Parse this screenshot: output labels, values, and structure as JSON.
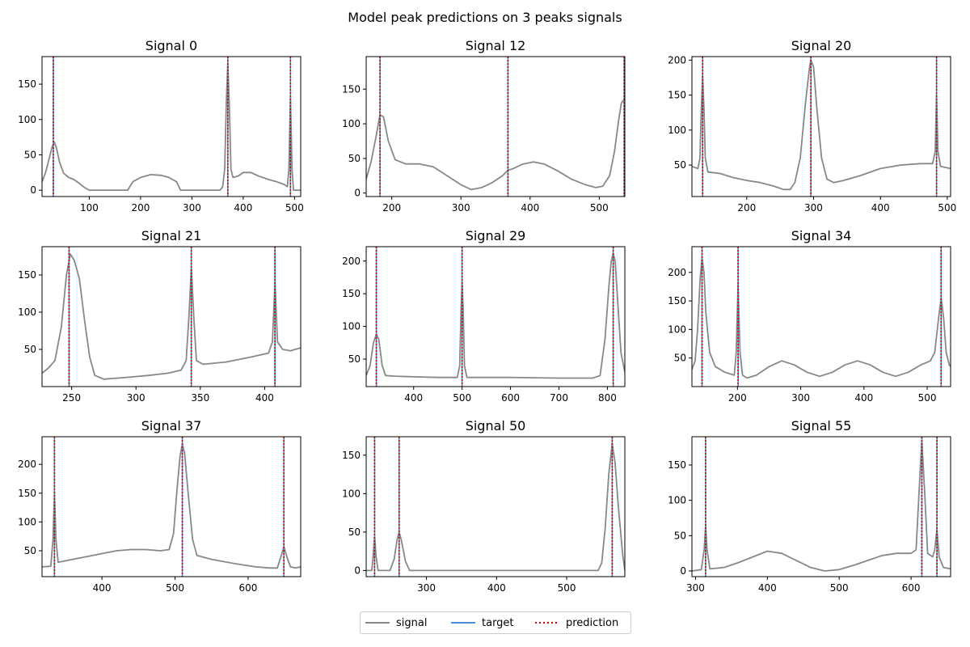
{
  "figure": {
    "suptitle": "Model peak predictions on 3 peaks signals",
    "colors": {
      "signal": "#888888",
      "target": "#4a90d9",
      "prediction": "#cc0000"
    }
  },
  "legend": {
    "signal": "signal",
    "target": "target",
    "prediction": "prediction"
  },
  "chart_data": [
    {
      "type": "line",
      "title": "Signal 0",
      "xlim": [
        8,
        512
      ],
      "ylim": [
        -9,
        189
      ],
      "xticks": [
        100,
        200,
        300,
        400,
        500
      ],
      "yticks": [
        0,
        50,
        100,
        150
      ],
      "targets": [
        30,
        370,
        492
      ],
      "predictions": [
        30,
        370,
        492
      ],
      "signal": [
        [
          8,
          12
        ],
        [
          15,
          25
        ],
        [
          22,
          45
        ],
        [
          28,
          62
        ],
        [
          32,
          68
        ],
        [
          36,
          60
        ],
        [
          42,
          40
        ],
        [
          50,
          24
        ],
        [
          60,
          18
        ],
        [
          70,
          15
        ],
        [
          80,
          10
        ],
        [
          90,
          4
        ],
        [
          100,
          0
        ],
        [
          175,
          0
        ],
        [
          185,
          12
        ],
        [
          200,
          18
        ],
        [
          220,
          22
        ],
        [
          240,
          21
        ],
        [
          255,
          18
        ],
        [
          270,
          12
        ],
        [
          278,
          0
        ],
        [
          355,
          0
        ],
        [
          360,
          5
        ],
        [
          364,
          30
        ],
        [
          367,
          120
        ],
        [
          370,
          180
        ],
        [
          373,
          120
        ],
        [
          376,
          30
        ],
        [
          380,
          18
        ],
        [
          390,
          20
        ],
        [
          400,
          25
        ],
        [
          415,
          25
        ],
        [
          430,
          20
        ],
        [
          450,
          15
        ],
        [
          465,
          12
        ],
        [
          480,
          8
        ],
        [
          486,
          5
        ],
        [
          489,
          30
        ],
        [
          492,
          132
        ],
        [
          495,
          30
        ],
        [
          498,
          0
        ],
        [
          512,
          0
        ]
      ]
    },
    {
      "type": "line",
      "title": "Signal 12",
      "xlim": [
        163,
        537
      ],
      "ylim": [
        -5,
        197
      ],
      "xticks": [
        200,
        300,
        400,
        500
      ],
      "yticks": [
        0,
        50,
        100,
        150
      ],
      "targets": [
        183,
        368,
        536
      ],
      "predictions": [
        183,
        368,
        536
      ],
      "signal": [
        [
          163,
          20
        ],
        [
          170,
          45
        ],
        [
          177,
          80
        ],
        [
          183,
          113
        ],
        [
          188,
          110
        ],
        [
          195,
          75
        ],
        [
          205,
          48
        ],
        [
          220,
          42
        ],
        [
          240,
          42
        ],
        [
          260,
          38
        ],
        [
          280,
          25
        ],
        [
          300,
          12
        ],
        [
          315,
          5
        ],
        [
          330,
          8
        ],
        [
          345,
          15
        ],
        [
          360,
          25
        ],
        [
          368,
          33
        ],
        [
          375,
          35
        ],
        [
          390,
          42
        ],
        [
          405,
          45
        ],
        [
          420,
          42
        ],
        [
          440,
          32
        ],
        [
          460,
          20
        ],
        [
          480,
          12
        ],
        [
          495,
          8
        ],
        [
          505,
          10
        ],
        [
          515,
          25
        ],
        [
          522,
          60
        ],
        [
          528,
          105
        ],
        [
          532,
          130
        ],
        [
          536,
          135
        ],
        [
          537,
          134
        ]
      ]
    },
    {
      "type": "line",
      "title": "Signal 20",
      "xlim": [
        118,
        505
      ],
      "ylim": [
        5,
        205
      ],
      "xticks": [
        200,
        300,
        400,
        500
      ],
      "yticks": [
        50,
        100,
        150,
        200
      ],
      "targets": [
        134,
        296,
        484
      ],
      "predictions": [
        134,
        296,
        484
      ],
      "signal": [
        [
          118,
          48
        ],
        [
          127,
          45
        ],
        [
          130,
          60
        ],
        [
          132,
          130
        ],
        [
          134,
          178
        ],
        [
          136,
          130
        ],
        [
          138,
          60
        ],
        [
          142,
          40
        ],
        [
          160,
          38
        ],
        [
          180,
          32
        ],
        [
          200,
          28
        ],
        [
          220,
          25
        ],
        [
          240,
          20
        ],
        [
          255,
          15
        ],
        [
          265,
          15
        ],
        [
          272,
          25
        ],
        [
          280,
          60
        ],
        [
          288,
          140
        ],
        [
          294,
          190
        ],
        [
          296,
          200
        ],
        [
          300,
          190
        ],
        [
          305,
          130
        ],
        [
          312,
          60
        ],
        [
          320,
          30
        ],
        [
          330,
          25
        ],
        [
          345,
          28
        ],
        [
          370,
          35
        ],
        [
          400,
          45
        ],
        [
          430,
          50
        ],
        [
          460,
          52
        ],
        [
          478,
          52
        ],
        [
          482,
          70
        ],
        [
          484,
          150
        ],
        [
          486,
          70
        ],
        [
          490,
          48
        ],
        [
          505,
          45
        ]
      ]
    },
    {
      "type": "line",
      "title": "Signal 21",
      "xlim": [
        227,
        428
      ],
      "ylim": [
        0,
        188
      ],
      "xticks": [
        250,
        300,
        350,
        400
      ],
      "yticks": [
        50,
        100,
        150
      ],
      "targets": [
        248,
        343,
        408
      ],
      "predictions": [
        248,
        343,
        408
      ],
      "signal": [
        [
          227,
          18
        ],
        [
          232,
          25
        ],
        [
          237,
          35
        ],
        [
          242,
          80
        ],
        [
          246,
          150
        ],
        [
          249,
          178
        ],
        [
          252,
          170
        ],
        [
          256,
          145
        ],
        [
          260,
          90
        ],
        [
          264,
          40
        ],
        [
          268,
          15
        ],
        [
          275,
          10
        ],
        [
          290,
          12
        ],
        [
          310,
          15
        ],
        [
          325,
          18
        ],
        [
          335,
          22
        ],
        [
          339,
          35
        ],
        [
          341,
          90
        ],
        [
          343,
          160
        ],
        [
          345,
          90
        ],
        [
          347,
          35
        ],
        [
          352,
          30
        ],
        [
          370,
          33
        ],
        [
          390,
          40
        ],
        [
          403,
          45
        ],
        [
          406,
          60
        ],
        [
          408,
          140
        ],
        [
          410,
          60
        ],
        [
          414,
          50
        ],
        [
          420,
          48
        ],
        [
          428,
          52
        ]
      ]
    },
    {
      "type": "line",
      "title": "Signal 29",
      "xlim": [
        302,
        836
      ],
      "ylim": [
        8,
        222
      ],
      "xticks": [
        400,
        500,
        600,
        700,
        800
      ],
      "yticks": [
        50,
        100,
        150,
        200
      ],
      "targets": [
        323,
        500,
        812
      ],
      "predictions": [
        323,
        500,
        812
      ],
      "signal": [
        [
          302,
          25
        ],
        [
          310,
          40
        ],
        [
          317,
          75
        ],
        [
          323,
          88
        ],
        [
          328,
          80
        ],
        [
          335,
          40
        ],
        [
          342,
          25
        ],
        [
          360,
          24
        ],
        [
          400,
          23
        ],
        [
          450,
          22
        ],
        [
          490,
          22
        ],
        [
          495,
          40
        ],
        [
          498,
          130
        ],
        [
          500,
          168
        ],
        [
          502,
          130
        ],
        [
          505,
          40
        ],
        [
          510,
          22
        ],
        [
          600,
          22
        ],
        [
          700,
          21
        ],
        [
          770,
          21
        ],
        [
          785,
          25
        ],
        [
          795,
          80
        ],
        [
          803,
          160
        ],
        [
          808,
          200
        ],
        [
          812,
          212
        ],
        [
          816,
          200
        ],
        [
          822,
          130
        ],
        [
          828,
          60
        ],
        [
          836,
          30
        ]
      ]
    },
    {
      "type": "line",
      "title": "Signal 34",
      "xlim": [
        128,
        537
      ],
      "ylim": [
        0,
        245
      ],
      "xticks": [
        200,
        300,
        400,
        500
      ],
      "yticks": [
        50,
        100,
        150,
        200
      ],
      "targets": [
        144,
        201,
        522
      ],
      "predictions": [
        144,
        201,
        522
      ],
      "signal": [
        [
          128,
          30
        ],
        [
          133,
          45
        ],
        [
          137,
          100
        ],
        [
          141,
          190
        ],
        [
          144,
          225
        ],
        [
          147,
          200
        ],
        [
          150,
          130
        ],
        [
          156,
          60
        ],
        [
          165,
          35
        ],
        [
          180,
          25
        ],
        [
          195,
          20
        ],
        [
          198,
          60
        ],
        [
          201,
          180
        ],
        [
          204,
          60
        ],
        [
          208,
          20
        ],
        [
          215,
          15
        ],
        [
          230,
          20
        ],
        [
          250,
          35
        ],
        [
          270,
          45
        ],
        [
          290,
          38
        ],
        [
          310,
          25
        ],
        [
          330,
          18
        ],
        [
          350,
          25
        ],
        [
          370,
          38
        ],
        [
          390,
          45
        ],
        [
          410,
          38
        ],
        [
          430,
          25
        ],
        [
          450,
          18
        ],
        [
          470,
          25
        ],
        [
          490,
          38
        ],
        [
          505,
          45
        ],
        [
          512,
          60
        ],
        [
          518,
          120
        ],
        [
          522,
          155
        ],
        [
          526,
          120
        ],
        [
          530,
          60
        ],
        [
          535,
          38
        ],
        [
          537,
          35
        ]
      ]
    },
    {
      "type": "line",
      "title": "Signal 37",
      "xlim": [
        318,
        672
      ],
      "ylim": [
        5,
        248
      ],
      "xticks": [
        400,
        500,
        600
      ],
      "yticks": [
        50,
        100,
        150,
        200
      ],
      "targets": [
        335,
        510,
        649
      ],
      "predictions": [
        335,
        510,
        649
      ],
      "signal": [
        [
          318,
          22
        ],
        [
          330,
          23
        ],
        [
          333,
          70
        ],
        [
          335,
          150
        ],
        [
          337,
          70
        ],
        [
          340,
          30
        ],
        [
          360,
          35
        ],
        [
          380,
          40
        ],
        [
          400,
          45
        ],
        [
          420,
          50
        ],
        [
          440,
          52
        ],
        [
          460,
          52
        ],
        [
          480,
          50
        ],
        [
          492,
          52
        ],
        [
          498,
          80
        ],
        [
          503,
          160
        ],
        [
          507,
          215
        ],
        [
          510,
          235
        ],
        [
          513,
          220
        ],
        [
          518,
          150
        ],
        [
          524,
          70
        ],
        [
          530,
          42
        ],
        [
          550,
          35
        ],
        [
          580,
          28
        ],
        [
          610,
          22
        ],
        [
          630,
          20
        ],
        [
          640,
          20
        ],
        [
          645,
          40
        ],
        [
          649,
          57
        ],
        [
          653,
          40
        ],
        [
          658,
          22
        ],
        [
          665,
          20
        ],
        [
          672,
          22
        ]
      ]
    },
    {
      "type": "line",
      "title": "Signal 50",
      "xlim": [
        214,
        583
      ],
      "ylim": [
        -8,
        174
      ],
      "xticks": [
        300,
        400,
        500
      ],
      "yticks": [
        0,
        50,
        100,
        150
      ],
      "targets": [
        226,
        261,
        565
      ],
      "predictions": [
        226,
        261,
        565
      ],
      "signal": [
        [
          214,
          0
        ],
        [
          222,
          0
        ],
        [
          224,
          20
        ],
        [
          226,
          45
        ],
        [
          228,
          20
        ],
        [
          231,
          0
        ],
        [
          248,
          0
        ],
        [
          254,
          15
        ],
        [
          258,
          40
        ],
        [
          261,
          50
        ],
        [
          264,
          40
        ],
        [
          270,
          12
        ],
        [
          276,
          0
        ],
        [
          545,
          0
        ],
        [
          550,
          10
        ],
        [
          555,
          55
        ],
        [
          560,
          125
        ],
        [
          565,
          165
        ],
        [
          569,
          140
        ],
        [
          574,
          80
        ],
        [
          580,
          20
        ],
        [
          583,
          0
        ]
      ]
    },
    {
      "type": "line",
      "title": "Signal 55",
      "xlim": [
        295,
        655
      ],
      "ylim": [
        -8,
        190
      ],
      "xticks": [
        300,
        400,
        500,
        600
      ],
      "yticks": [
        0,
        50,
        100,
        150
      ],
      "targets": [
        314,
        615,
        636
      ],
      "predictions": [
        314,
        615,
        636
      ],
      "signal": [
        [
          295,
          0
        ],
        [
          308,
          2
        ],
        [
          312,
          30
        ],
        [
          314,
          65
        ],
        [
          316,
          30
        ],
        [
          320,
          3
        ],
        [
          340,
          5
        ],
        [
          360,
          12
        ],
        [
          380,
          20
        ],
        [
          400,
          28
        ],
        [
          420,
          25
        ],
        [
          440,
          15
        ],
        [
          460,
          5
        ],
        [
          480,
          0
        ],
        [
          500,
          2
        ],
        [
          520,
          8
        ],
        [
          540,
          15
        ],
        [
          560,
          22
        ],
        [
          580,
          25
        ],
        [
          600,
          25
        ],
        [
          607,
          30
        ],
        [
          611,
          110
        ],
        [
          615,
          185
        ],
        [
          619,
          110
        ],
        [
          623,
          25
        ],
        [
          630,
          20
        ],
        [
          633,
          30
        ],
        [
          636,
          60
        ],
        [
          639,
          20
        ],
        [
          645,
          5
        ],
        [
          655,
          3
        ]
      ]
    }
  ]
}
